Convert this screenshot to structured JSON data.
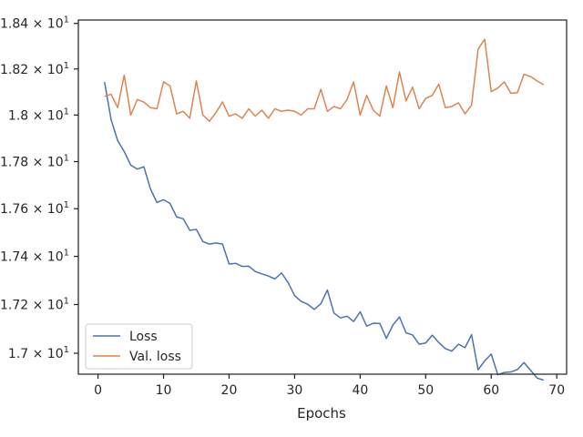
{
  "chart_data": {
    "type": "line",
    "xlabel": "Epochs",
    "ylabel": "",
    "xlim": [
      -3,
      71.5
    ],
    "ylim": [
      16.915,
      18.415
    ],
    "yscale": "log",
    "grid": false,
    "legend_position": "lower-left",
    "x_ticks": [
      0,
      10,
      20,
      30,
      40,
      50,
      60,
      70
    ],
    "x_tick_labels": [
      "0",
      "10",
      "20",
      "30",
      "40",
      "50",
      "60",
      "70"
    ],
    "y_ticks": [
      17.0,
      17.2,
      17.4,
      17.6,
      17.8,
      18.0,
      18.2,
      18.4
    ],
    "y_tick_labels": [
      "1.7 × 10",
      "1.72 × 10",
      "1.74 × 10",
      "1.76 × 10",
      "1.78 × 10",
      "1.8 × 10",
      "1.82 × 10",
      "1.84 × 10"
    ],
    "y_tick_exponent": "1",
    "x": [
      1,
      2,
      3,
      4,
      5,
      6,
      7,
      8,
      9,
      10,
      11,
      12,
      13,
      14,
      15,
      16,
      17,
      18,
      19,
      20,
      21,
      22,
      23,
      24,
      25,
      26,
      27,
      28,
      29,
      30,
      31,
      32,
      33,
      34,
      35,
      36,
      37,
      38,
      39,
      40,
      41,
      42,
      43,
      44,
      45,
      46,
      47,
      48,
      49,
      50,
      51,
      52,
      53,
      54,
      55,
      56,
      57,
      58,
      59,
      60,
      61,
      62,
      63,
      64,
      65,
      66,
      67,
      68
    ],
    "series": [
      {
        "name": "Loss",
        "color": "#4c72b0",
        "values": [
          18.143,
          17.98,
          17.89,
          17.843,
          17.785,
          17.768,
          17.778,
          17.684,
          17.626,
          17.638,
          17.622,
          17.565,
          17.558,
          17.509,
          17.513,
          17.462,
          17.451,
          17.456,
          17.451,
          17.368,
          17.371,
          17.358,
          17.359,
          17.337,
          17.327,
          17.318,
          17.306,
          17.331,
          17.291,
          17.237,
          17.213,
          17.201,
          17.18,
          17.203,
          17.26,
          17.165,
          17.145,
          17.152,
          17.13,
          17.17,
          17.111,
          17.123,
          17.122,
          17.061,
          17.116,
          17.149,
          17.084,
          17.075,
          17.037,
          17.042,
          17.074,
          17.044,
          17.019,
          17.009,
          17.037,
          17.023,
          17.076,
          16.933,
          16.969,
          16.997,
          16.913,
          16.922,
          16.924,
          16.934,
          16.962,
          16.931,
          16.899,
          16.891
        ]
      },
      {
        "name": "Val. loss",
        "color": "#dd8452",
        "values": [
          18.081,
          18.09,
          18.032,
          18.173,
          18.0,
          18.067,
          18.056,
          18.032,
          18.027,
          18.144,
          18.126,
          18.005,
          18.016,
          17.986,
          18.148,
          18.0,
          17.973,
          18.011,
          18.057,
          17.995,
          18.005,
          17.986,
          18.027,
          17.995,
          18.021,
          17.986,
          18.027,
          18.016,
          18.021,
          18.016,
          18.0,
          18.027,
          18.027,
          18.112,
          18.016,
          18.037,
          18.027,
          18.067,
          18.144,
          18.0,
          18.085,
          18.021,
          17.995,
          18.126,
          18.032,
          18.187,
          18.061,
          18.121,
          18.027,
          18.072,
          18.085,
          18.134,
          18.032,
          18.037,
          18.053,
          18.005,
          18.043,
          18.287,
          18.33,
          18.101,
          18.117,
          18.144,
          18.094,
          18.097,
          18.177,
          18.167,
          18.148,
          18.131
        ]
      }
    ]
  }
}
